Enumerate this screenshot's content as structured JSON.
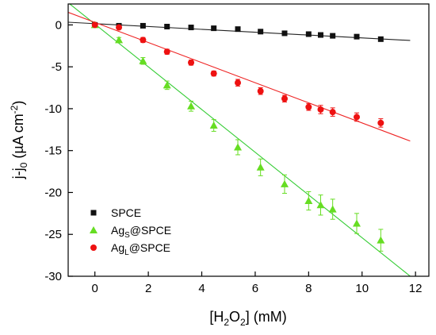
{
  "chart_data": {
    "type": "scatter",
    "xlabel": {
      "pre": "[H",
      "sub1": "2",
      "mid": "O",
      "sub2": "2",
      "post": "] (mM)"
    },
    "ylabel": {
      "pre": "j-j",
      "sub": "0",
      "mid": " (µA cm",
      "sup": "-2",
      "post": ")"
    },
    "xlim": [
      -1,
      12.5
    ],
    "ylim": [
      -30,
      2.5
    ],
    "xticks": [
      0,
      2,
      4,
      6,
      8,
      10,
      12
    ],
    "yticks": [
      0,
      -5,
      -10,
      -15,
      -20,
      -25,
      -30
    ],
    "legend_position": "bottom-left",
    "series": [
      {
        "name": "SPCE",
        "legend_label": {
          "base": "SPCE",
          "sub": "",
          "rest": ""
        },
        "marker": "square",
        "color": "#111111",
        "fit_color": "#222222",
        "fit": {
          "slope": -0.17,
          "intercept": 0.15,
          "x_range": [
            -1,
            11.8
          ]
        },
        "x": [
          0,
          0.9,
          1.8,
          2.7,
          3.6,
          4.45,
          5.35,
          6.2,
          7.1,
          8.0,
          8.45,
          8.9,
          9.8,
          10.7
        ],
        "y": [
          0,
          -0.1,
          -0.1,
          -0.2,
          -0.3,
          -0.4,
          -0.5,
          -0.8,
          -1.0,
          -1.1,
          -1.2,
          -1.3,
          -1.4,
          -1.7
        ],
        "err": [
          0.1,
          0.1,
          0.1,
          0.1,
          0.1,
          0.1,
          0.1,
          0.1,
          0.1,
          0.1,
          0.1,
          0.1,
          0.1,
          0.1
        ]
      },
      {
        "name": "AgS@SPCE",
        "legend_label": {
          "base": "Ag",
          "sub": "S",
          "rest": "@SPCE"
        },
        "marker": "triangle",
        "color": "#66dd22",
        "fit_color": "#33cc33",
        "fit": {
          "slope": -2.55,
          "intercept": 0.1,
          "x_range": [
            -1,
            11.8
          ]
        },
        "x": [
          0,
          0.9,
          1.8,
          2.7,
          3.6,
          4.45,
          5.35,
          6.2,
          7.1,
          8.0,
          8.45,
          8.9,
          9.8,
          10.7
        ],
        "y": [
          0,
          -1.8,
          -4.3,
          -7.2,
          -9.7,
          -12.0,
          -14.6,
          -17.0,
          -19.0,
          -21.0,
          -21.5,
          -22.0,
          -23.7,
          -25.7
        ],
        "err": [
          0.2,
          0.3,
          0.4,
          0.5,
          0.6,
          0.7,
          0.9,
          1.0,
          1.1,
          1.1,
          1.2,
          1.2,
          1.2,
          1.3
        ]
      },
      {
        "name": "AgL@SPCE",
        "legend_label": {
          "base": "Ag",
          "sub": "L",
          "rest": "@SPCE"
        },
        "marker": "circle",
        "color": "#ee1111",
        "fit_color": "#ee2222",
        "fit": {
          "slope": -1.2,
          "intercept": 0.3,
          "x_range": [
            -1,
            11.8
          ]
        },
        "x": [
          0,
          0.9,
          1.8,
          2.7,
          3.6,
          4.45,
          5.35,
          6.2,
          7.1,
          8.0,
          8.45,
          8.9,
          9.8,
          10.7
        ],
        "y": [
          0,
          -0.3,
          -1.8,
          -3.2,
          -4.5,
          -5.8,
          -6.9,
          -7.9,
          -8.8,
          -9.8,
          -10.1,
          -10.4,
          -11.0,
          -11.7
        ],
        "err": [
          0.2,
          0.2,
          0.3,
          0.3,
          0.3,
          0.3,
          0.4,
          0.4,
          0.4,
          0.4,
          0.5,
          0.5,
          0.5,
          0.5
        ]
      }
    ]
  }
}
